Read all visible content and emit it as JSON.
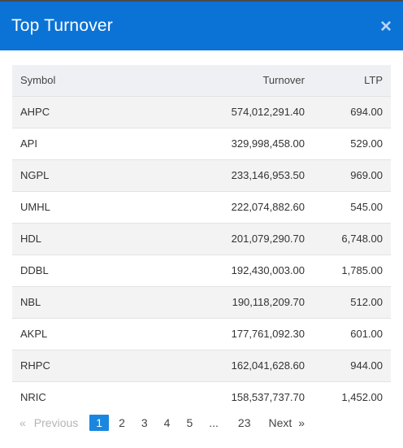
{
  "header": {
    "title": "Top Turnover",
    "close": "×"
  },
  "table": {
    "columns": [
      "Symbol",
      "Turnover",
      "LTP"
    ],
    "rows": [
      {
        "symbol": "AHPC",
        "turnover": "574,012,291.40",
        "ltp": "694.00"
      },
      {
        "symbol": "API",
        "turnover": "329,998,458.00",
        "ltp": "529.00"
      },
      {
        "symbol": "NGPL",
        "turnover": "233,146,953.50",
        "ltp": "969.00"
      },
      {
        "symbol": "UMHL",
        "turnover": "222,074,882.60",
        "ltp": "545.00"
      },
      {
        "symbol": "HDL",
        "turnover": "201,079,290.70",
        "ltp": "6,748.00"
      },
      {
        "symbol": "DDBL",
        "turnover": "192,430,003.00",
        "ltp": "1,785.00"
      },
      {
        "symbol": "NBL",
        "turnover": "190,118,209.70",
        "ltp": "512.00"
      },
      {
        "symbol": "AKPL",
        "turnover": "177,761,092.30",
        "ltp": "601.00"
      },
      {
        "symbol": "RHPC",
        "turnover": "162,041,628.60",
        "ltp": "944.00"
      },
      {
        "symbol": "NRIC",
        "turnover": "158,537,737.70",
        "ltp": "1,452.00"
      }
    ]
  },
  "pagination": {
    "prev_arrow": "«",
    "prev_label": "Previous",
    "pages": [
      "1",
      "2",
      "3",
      "4",
      "5"
    ],
    "ellipsis": "...",
    "last_page": "23",
    "next_label": "Next",
    "next_arrow": "»",
    "active_page": "1"
  },
  "colors": {
    "header": "#0b73d6",
    "active_page": "#1a86e0"
  }
}
